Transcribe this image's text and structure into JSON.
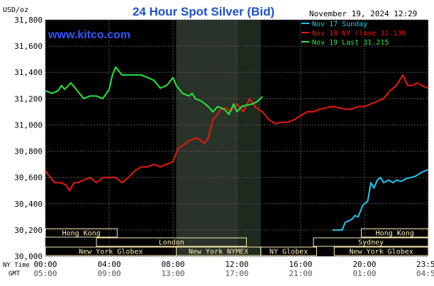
{
  "chart_data": {
    "type": "line",
    "title": "24 Hour Spot Silver (Bid)",
    "ylabel": "USD/oz",
    "watermark": "www.kitco.com",
    "timestamp": "November 19, 2024 12:29",
    "ylim": [
      30000,
      31800
    ],
    "y_ticks": [
      "31,800",
      "31,600",
      "31,400",
      "31,200",
      "31,000",
      "30,800",
      "30,600",
      "30,400",
      "30,200",
      "30,000"
    ],
    "y_tick_values": [
      31800,
      31600,
      31400,
      31200,
      31000,
      30800,
      30600,
      30400,
      30200,
      30000
    ],
    "x_label_ny": "NY Time",
    "x_label_gmt": "GMT",
    "x_ticks_ny": [
      "00:00",
      "04:00",
      "08:00",
      "12:00",
      "16:00",
      "20:00",
      "23:59"
    ],
    "x_ticks_gmt": [
      "05:00",
      "09:00",
      "13:00",
      "17:00",
      "21:00",
      "01:00",
      "04:59"
    ],
    "x_tick_hours": [
      0,
      4,
      8,
      12,
      16,
      20,
      23.98
    ],
    "xlim": [
      0,
      24
    ],
    "shaded_region_hours": [
      [
        8.2,
        13.5
      ],
      [
        8.2,
        12.0
      ]
    ],
    "colors": {
      "background": "#000000",
      "grid": "#555555",
      "axis_text": "#000000",
      "title": "#1f4fd0",
      "watermark": "#3355ff",
      "legend_text": "#ffffff",
      "nov17": "#1ec8f0",
      "nov18": "#e8190a",
      "nov19": "#26e83c",
      "session_bar": "#ffeeb4"
    },
    "legend": {
      "position": "top-right",
      "items": [
        {
          "label": "Nov 17 Sunday",
          "color": "#1ec8f0"
        },
        {
          "label": "Nov 18 NY close 31.130",
          "color": "#e8190a"
        },
        {
          "label": "Nov 19 Last 31.215",
          "color": "#26e83c"
        }
      ]
    },
    "sessions": [
      {
        "label": "Hong Kong",
        "start": 0.0,
        "end": 4.5,
        "row": 0
      },
      {
        "label": "London",
        "start": 3.2,
        "end": 12.6,
        "row": 1
      },
      {
        "label": "New York Globex",
        "start": 0.0,
        "end": 8.2,
        "row": 2
      },
      {
        "label": "New York NYMEX",
        "start": 8.2,
        "end": 13.5,
        "row": 2
      },
      {
        "label": "NY Globex",
        "start": 13.5,
        "end": 17.0,
        "row": 2
      },
      {
        "label": "Hong Kong",
        "start": 19.8,
        "end": 24.0,
        "row": 0
      },
      {
        "label": "Sydney",
        "start": 16.8,
        "end": 24.0,
        "row": 1
      },
      {
        "label": "New York Globex",
        "start": 18.1,
        "end": 24.0,
        "row": 2
      }
    ],
    "series": [
      {
        "name": "Nov 17 Sunday",
        "color": "#1ec8f0",
        "points": [
          [
            18.0,
            30200
          ],
          [
            18.6,
            30200
          ],
          [
            18.8,
            30260
          ],
          [
            19.2,
            30280
          ],
          [
            19.4,
            30310
          ],
          [
            19.6,
            30300
          ],
          [
            19.9,
            30390
          ],
          [
            20.2,
            30420
          ],
          [
            20.4,
            30560
          ],
          [
            20.6,
            30520
          ],
          [
            20.8,
            30580
          ],
          [
            21.0,
            30600
          ],
          [
            21.2,
            30560
          ],
          [
            21.5,
            30580
          ],
          [
            21.8,
            30560
          ],
          [
            22.0,
            30580
          ],
          [
            22.3,
            30570
          ],
          [
            22.6,
            30590
          ],
          [
            22.9,
            30600
          ],
          [
            23.2,
            30610
          ],
          [
            23.6,
            30640
          ],
          [
            23.98,
            30660
          ]
        ]
      },
      {
        "name": "Nov 18 NY close 31.130",
        "color": "#e8190a",
        "points": [
          [
            0.0,
            30650
          ],
          [
            0.3,
            30600
          ],
          [
            0.6,
            30560
          ],
          [
            1.0,
            30560
          ],
          [
            1.3,
            30540
          ],
          [
            1.5,
            30500
          ],
          [
            1.8,
            30560
          ],
          [
            2.0,
            30560
          ],
          [
            2.4,
            30580
          ],
          [
            2.8,
            30600
          ],
          [
            3.2,
            30560
          ],
          [
            3.6,
            30600
          ],
          [
            4.0,
            30600
          ],
          [
            4.4,
            30600
          ],
          [
            4.8,
            30560
          ],
          [
            5.2,
            30600
          ],
          [
            5.6,
            30650
          ],
          [
            6.0,
            30680
          ],
          [
            6.4,
            30680
          ],
          [
            6.8,
            30700
          ],
          [
            7.2,
            30680
          ],
          [
            7.6,
            30700
          ],
          [
            8.0,
            30720
          ],
          [
            8.3,
            30820
          ],
          [
            8.7,
            30850
          ],
          [
            9.0,
            30880
          ],
          [
            9.5,
            30900
          ],
          [
            10.0,
            30860
          ],
          [
            10.2,
            30900
          ],
          [
            10.5,
            31040
          ],
          [
            10.8,
            31080
          ],
          [
            11.0,
            31120
          ],
          [
            11.3,
            31130
          ],
          [
            11.6,
            31100
          ],
          [
            12.0,
            31160
          ],
          [
            12.4,
            31100
          ],
          [
            12.8,
            31200
          ],
          [
            13.2,
            31130
          ],
          [
            13.6,
            31100
          ],
          [
            14.0,
            31040
          ],
          [
            14.4,
            31010
          ],
          [
            14.8,
            31020
          ],
          [
            15.2,
            31020
          ],
          [
            15.6,
            31040
          ],
          [
            16.0,
            31070
          ],
          [
            16.4,
            31100
          ],
          [
            16.8,
            31100
          ],
          [
            17.2,
            31120
          ],
          [
            17.6,
            31130
          ],
          [
            18.0,
            31140
          ],
          [
            18.4,
            31130
          ],
          [
            18.8,
            31120
          ],
          [
            19.2,
            31120
          ],
          [
            19.6,
            31140
          ],
          [
            20.0,
            31140
          ],
          [
            20.4,
            31160
          ],
          [
            20.8,
            31180
          ],
          [
            21.2,
            31200
          ],
          [
            21.6,
            31260
          ],
          [
            22.0,
            31300
          ],
          [
            22.2,
            31340
          ],
          [
            22.4,
            31380
          ],
          [
            22.7,
            31300
          ],
          [
            23.0,
            31300
          ],
          [
            23.3,
            31320
          ],
          [
            23.6,
            31300
          ],
          [
            23.98,
            31280
          ]
        ]
      },
      {
        "name": "Nov 19 Last 31.215",
        "color": "#26e83c",
        "points": [
          [
            0.0,
            31260
          ],
          [
            0.4,
            31240
          ],
          [
            0.8,
            31260
          ],
          [
            1.0,
            31300
          ],
          [
            1.2,
            31270
          ],
          [
            1.6,
            31320
          ],
          [
            2.0,
            31260
          ],
          [
            2.4,
            31200
          ],
          [
            2.8,
            31220
          ],
          [
            3.2,
            31220
          ],
          [
            3.6,
            31200
          ],
          [
            4.0,
            31270
          ],
          [
            4.2,
            31380
          ],
          [
            4.4,
            31440
          ],
          [
            4.8,
            31380
          ],
          [
            5.2,
            31380
          ],
          [
            5.6,
            31380
          ],
          [
            6.0,
            31380
          ],
          [
            6.4,
            31360
          ],
          [
            6.8,
            31340
          ],
          [
            7.2,
            31280
          ],
          [
            7.6,
            31300
          ],
          [
            8.0,
            31360
          ],
          [
            8.2,
            31300
          ],
          [
            8.6,
            31240
          ],
          [
            9.0,
            31220
          ],
          [
            9.2,
            31240
          ],
          [
            9.4,
            31200
          ],
          [
            9.8,
            31180
          ],
          [
            10.2,
            31140
          ],
          [
            10.5,
            31100
          ],
          [
            10.8,
            31140
          ],
          [
            11.2,
            31120
          ],
          [
            11.5,
            31080
          ],
          [
            11.8,
            31160
          ],
          [
            12.0,
            31100
          ],
          [
            12.3,
            31140
          ],
          [
            12.6,
            31150
          ],
          [
            13.0,
            31160
          ],
          [
            13.3,
            31180
          ],
          [
            13.6,
            31215
          ]
        ]
      }
    ]
  }
}
